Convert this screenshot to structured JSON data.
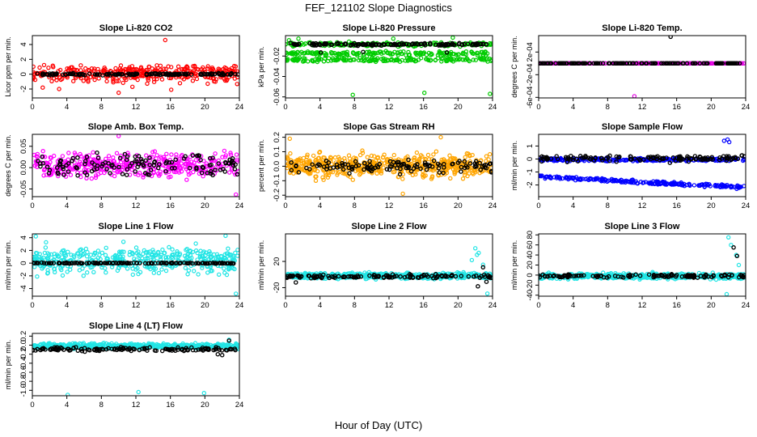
{
  "figure": {
    "title": "FEF_121102  Slope Diagnostics",
    "xlabel": "Hour of Day (UTC)"
  },
  "chart_data": [
    {
      "type": "scatter",
      "title": "Slope Li-820 CO2",
      "ylabel": "Licor ppm per min.",
      "xlim": [
        0,
        24
      ],
      "xticks": [
        0,
        4,
        8,
        12,
        16,
        20,
        24
      ],
      "ylim": [
        -3.2,
        5.2
      ],
      "yticks": [
        -2,
        0,
        2,
        4
      ],
      "ytick_labels": [
        "-2",
        "0",
        "2",
        "4"
      ],
      "series": [
        {
          "name": "all",
          "color": "#ff0000",
          "pattern": "spread",
          "center": 0.1,
          "spread": 1.1,
          "n": 360,
          "x": [
            1.2,
            3.1,
            10.0,
            11.6,
            15.4,
            16.1,
            22.8,
            23.4
          ],
          "y": [
            -1.8,
            -2.0,
            -2.5,
            -1.7,
            4.6,
            -2.1,
            0.6,
            1.1
          ]
        },
        {
          "name": "selected",
          "color": "#000000",
          "pattern": "steady",
          "center": 0.0,
          "spread": 0.12,
          "n": 140,
          "x": [],
          "y": []
        }
      ]
    },
    {
      "type": "scatter",
      "title": "Slope Li-820 Pressure",
      "ylabel": "kPa per min.",
      "xlim": [
        0,
        24
      ],
      "xticks": [
        0,
        4,
        8,
        12,
        16,
        20,
        24
      ],
      "ylim": [
        -0.061,
        0.0
      ],
      "yticks": [
        -0.06,
        -0.04,
        -0.02
      ],
      "ytick_labels": [
        "-0.06",
        "-0.04",
        "-0.02"
      ],
      "series": [
        {
          "name": "all",
          "color": "#00cc00",
          "pattern": "bands",
          "bands": [
            -0.0085,
            -0.0175,
            -0.0235
          ],
          "spread": 0.0018,
          "n": 520,
          "x": [
            0.4,
            7.8,
            16.1,
            23.7,
            1.5,
            12.5,
            19.4
          ],
          "y": [
            -0.0045,
            -0.058,
            -0.056,
            -0.057,
            -0.003,
            -0.003,
            -0.002
          ]
        },
        {
          "name": "selected",
          "color": "#000000",
          "pattern": "steady",
          "center": -0.0085,
          "spread": 0.0012,
          "n": 140,
          "x": [
            4.1,
            9.0,
            18.7
          ],
          "y": [
            -0.0165,
            -0.016,
            -0.0165
          ]
        }
      ]
    },
    {
      "type": "scatter",
      "title": "Slope Li-820 Temp.",
      "ylabel": "degrees C per min.",
      "xlim": [
        0,
        24
      ],
      "xticks": [
        0,
        4,
        8,
        12,
        16,
        20,
        24
      ],
      "ylim": [
        -0.00061,
        0.00049
      ],
      "yticks": [
        -0.0006,
        -0.0002,
        0.0002
      ],
      "ytick_labels": [
        "-6e-04",
        "-2e-04",
        "2e-04"
      ],
      "series": [
        {
          "name": "all",
          "color": "#e000e0",
          "pattern": "flat",
          "center": 0.0,
          "spread": 0.0,
          "n": 300,
          "x": [
            11.1,
            15.3
          ],
          "y": [
            -0.00058,
            0.0
          ]
        },
        {
          "name": "selected",
          "color": "#000000",
          "pattern": "flat",
          "center": 0.0,
          "spread": 0.0,
          "n": 140,
          "x": [
            15.3
          ],
          "y": [
            0.00047
          ]
        }
      ]
    },
    {
      "type": "scatter",
      "title": "Slope Amb. Box Temp.",
      "ylabel": "degrees C per min.",
      "xlim": [
        0,
        24
      ],
      "xticks": [
        0,
        4,
        8,
        12,
        16,
        20,
        24
      ],
      "ylim": [
        -0.068,
        0.078
      ],
      "yticks": [
        -0.05,
        0.0,
        0.05
      ],
      "ytick_labels": [
        "-0.05",
        "0.00",
        "0.05"
      ],
      "series": [
        {
          "name": "all",
          "color": "#ff00ff",
          "pattern": "spread",
          "center": 0.005,
          "spread": 0.026,
          "n": 420,
          "x": [
            10.0,
            23.6
          ],
          "y": [
            0.074,
            -0.063
          ]
        },
        {
          "name": "selected",
          "color": "#000000",
          "pattern": "spread",
          "center": 0.005,
          "spread": 0.025,
          "n": 130,
          "x": [],
          "y": []
        }
      ]
    },
    {
      "type": "scatter",
      "title": "Slope Gas Stream RH",
      "ylabel": "percent per min.",
      "xlim": [
        0,
        24
      ],
      "xticks": [
        0,
        4,
        8,
        12,
        16,
        20,
        24
      ],
      "ylim": [
        -0.21,
        0.22
      ],
      "yticks": [
        -0.2,
        -0.1,
        0.0,
        0.1,
        0.2
      ],
      "ytick_labels": [
        "-0.2",
        "-0.1",
        "0.0",
        "0.1",
        "0.2"
      ],
      "series": [
        {
          "name": "all",
          "color": "#ffa500",
          "pattern": "spread",
          "center": 0.0,
          "spread": 0.07,
          "n": 560,
          "x": [
            0.5,
            13.6,
            18.0
          ],
          "y": [
            0.19,
            -0.19,
            0.2
          ]
        },
        {
          "name": "selected",
          "color": "#000000",
          "pattern": "spread",
          "center": 0.0,
          "spread": 0.04,
          "n": 120,
          "x": [],
          "y": []
        }
      ]
    },
    {
      "type": "scatter",
      "title": "Slope Sample Flow",
      "ylabel": "ml/min per min.",
      "xlim": [
        0,
        24
      ],
      "xticks": [
        0,
        4,
        8,
        12,
        16,
        20,
        24
      ],
      "ylim": [
        -2.9,
        1.9
      ],
      "yticks": [
        -2,
        -1,
        0,
        1
      ],
      "ytick_labels": [
        "-2",
        "-1",
        "0",
        "1"
      ],
      "series": [
        {
          "name": "all",
          "color": "#0000ff",
          "pattern": "trend",
          "center": -0.05,
          "spread": 0.12,
          "n": 260,
          "lower_start": -1.35,
          "lower_end": -2.2,
          "n_lower": 220,
          "x": [
            21.5,
            21.9,
            22.1
          ],
          "y": [
            1.4,
            1.5,
            1.3
          ]
        },
        {
          "name": "selected",
          "color": "#000000",
          "pattern": "steady",
          "center": 0.05,
          "spread": 0.22,
          "n": 130,
          "x": [],
          "y": []
        }
      ]
    },
    {
      "type": "scatter",
      "title": "Slope Line 1 Flow",
      "ylabel": "ml/min per min.",
      "xlim": [
        0,
        24
      ],
      "xticks": [
        0,
        4,
        8,
        12,
        16,
        20,
        24
      ],
      "ylim": [
        -5.2,
        4.6
      ],
      "yticks": [
        -4,
        -2,
        0,
        2,
        4
      ],
      "ytick_labels": [
        "-4",
        "-2",
        "0",
        "2",
        "4"
      ],
      "series": [
        {
          "name": "all",
          "color": "#22e5e5",
          "pattern": "spread",
          "center": 0.4,
          "spread": 1.9,
          "n": 430,
          "x": [
            0.4,
            22.4,
            23.6
          ],
          "y": [
            4.2,
            4.3,
            -4.8
          ]
        },
        {
          "name": "selected",
          "color": "#000000",
          "pattern": "steady",
          "center": 0.0,
          "spread": 0.06,
          "n": 140,
          "x": [],
          "y": []
        }
      ]
    },
    {
      "type": "scatter",
      "title": "Slope Line 2 Flow",
      "ylabel": "ml/min per min.",
      "xlim": [
        0,
        24
      ],
      "xticks": [
        0,
        4,
        8,
        12,
        16,
        20,
        24
      ],
      "ylim": [
        -33,
        62
      ],
      "yticks": [
        -20,
        20
      ],
      "ytick_labels": [
        "-20",
        "20"
      ],
      "series": [
        {
          "name": "all",
          "color": "#22e5e5",
          "pattern": "spread",
          "center": -2.0,
          "spread": 4.0,
          "n": 520,
          "x": [
            22.0,
            22.4,
            21.6,
            22.9,
            23.4,
            22.2
          ],
          "y": [
            40.0,
            33.0,
            22.0,
            15.0,
            -29.0,
            30.0
          ]
        },
        {
          "name": "selected",
          "color": "#000000",
          "pattern": "steady",
          "center": -3.0,
          "spread": 2.5,
          "n": 120,
          "x": [
            1.2,
            22.3,
            22.9,
            23.3
          ],
          "y": [
            -12.0,
            -18.0,
            11.0,
            -11.0
          ]
        }
      ]
    },
    {
      "type": "scatter",
      "title": "Slope Line 3 Flow",
      "ylabel": "ml/min per min.",
      "xlim": [
        0,
        24
      ],
      "xticks": [
        0,
        4,
        8,
        12,
        16,
        20,
        24
      ],
      "ylim": [
        -42,
        82
      ],
      "yticks": [
        -40,
        -20,
        0,
        20,
        40,
        60,
        80
      ],
      "ytick_labels": [
        "-40",
        "-20",
        "0",
        "20",
        "40",
        "60",
        "80"
      ],
      "series": [
        {
          "name": "all",
          "color": "#22e5e5",
          "pattern": "spread",
          "center": -2.0,
          "spread": 5.0,
          "n": 520,
          "x": [
            22.0,
            22.3,
            22.9,
            23.2,
            21.8
          ],
          "y": [
            75.0,
            60.0,
            40.0,
            20.0,
            -38.0
          ]
        },
        {
          "name": "selected",
          "color": "#000000",
          "pattern": "steady",
          "center": -2.0,
          "spread": 3.0,
          "n": 120,
          "x": [
            22.6,
            23.0,
            23.4
          ],
          "y": [
            55.0,
            38.0,
            0.0
          ]
        }
      ]
    },
    {
      "type": "scatter",
      "title": "Slope Line 4 (LT) Flow",
      "ylabel": "ml/min per min.",
      "xlim": [
        0,
        24
      ],
      "xticks": [
        0,
        4,
        8,
        12,
        16,
        20,
        24
      ],
      "ylim": [
        -1.12,
        0.26
      ],
      "yticks": [
        -1.0,
        -0.8,
        -0.6,
        -0.4,
        -0.2,
        0.0,
        0.2
      ],
      "ytick_labels": [
        "-1.0",
        "-0.8",
        "-0.6",
        "-0.4",
        "-0.2",
        "0.0",
        "0.2"
      ],
      "series": [
        {
          "name": "all",
          "color": "#22e5e5",
          "pattern": "steady",
          "center": -0.02,
          "spread": 0.05,
          "n": 520,
          "x": [
            4.1,
            12.3,
            19.9,
            22.8
          ],
          "y": [
            -1.1,
            -1.04,
            -1.06,
            0.12
          ]
        },
        {
          "name": "selected",
          "color": "#000000",
          "pattern": "steady",
          "center": -0.09,
          "spread": 0.04,
          "n": 140,
          "x": [
            21.5,
            22.0,
            22.8
          ],
          "y": [
            -0.2,
            -0.22,
            0.1
          ]
        }
      ]
    }
  ]
}
